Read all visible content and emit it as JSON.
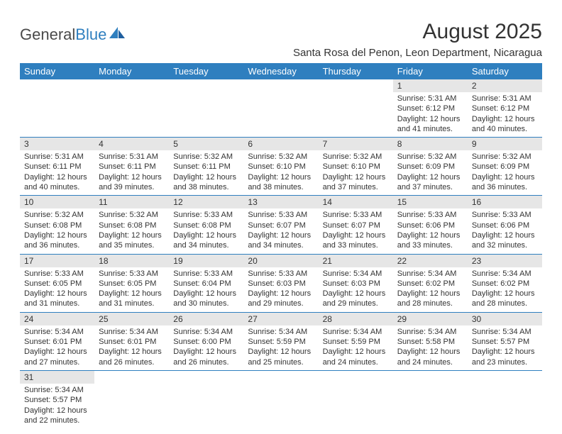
{
  "logo": {
    "part1": "General",
    "part2": "Blue"
  },
  "title": "August 2025",
  "location": "Santa Rosa del Penon, Leon Department, Nicaragua",
  "colors": {
    "header_bg": "#2f7fbf",
    "header_text": "#ffffff",
    "daynum_bg": "#e6e6e6",
    "border": "#2f7fbf",
    "text": "#333333",
    "logo_blue": "#2f7fbf"
  },
  "dayHeaders": [
    "Sunday",
    "Monday",
    "Tuesday",
    "Wednesday",
    "Thursday",
    "Friday",
    "Saturday"
  ],
  "weeks": [
    [
      null,
      null,
      null,
      null,
      null,
      {
        "n": "1",
        "sr": "Sunrise: 5:31 AM",
        "ss": "Sunset: 6:12 PM",
        "d1": "Daylight: 12 hours",
        "d2": "and 41 minutes."
      },
      {
        "n": "2",
        "sr": "Sunrise: 5:31 AM",
        "ss": "Sunset: 6:12 PM",
        "d1": "Daylight: 12 hours",
        "d2": "and 40 minutes."
      }
    ],
    [
      {
        "n": "3",
        "sr": "Sunrise: 5:31 AM",
        "ss": "Sunset: 6:11 PM",
        "d1": "Daylight: 12 hours",
        "d2": "and 40 minutes."
      },
      {
        "n": "4",
        "sr": "Sunrise: 5:31 AM",
        "ss": "Sunset: 6:11 PM",
        "d1": "Daylight: 12 hours",
        "d2": "and 39 minutes."
      },
      {
        "n": "5",
        "sr": "Sunrise: 5:32 AM",
        "ss": "Sunset: 6:11 PM",
        "d1": "Daylight: 12 hours",
        "d2": "and 38 minutes."
      },
      {
        "n": "6",
        "sr": "Sunrise: 5:32 AM",
        "ss": "Sunset: 6:10 PM",
        "d1": "Daylight: 12 hours",
        "d2": "and 38 minutes."
      },
      {
        "n": "7",
        "sr": "Sunrise: 5:32 AM",
        "ss": "Sunset: 6:10 PM",
        "d1": "Daylight: 12 hours",
        "d2": "and 37 minutes."
      },
      {
        "n": "8",
        "sr": "Sunrise: 5:32 AM",
        "ss": "Sunset: 6:09 PM",
        "d1": "Daylight: 12 hours",
        "d2": "and 37 minutes."
      },
      {
        "n": "9",
        "sr": "Sunrise: 5:32 AM",
        "ss": "Sunset: 6:09 PM",
        "d1": "Daylight: 12 hours",
        "d2": "and 36 minutes."
      }
    ],
    [
      {
        "n": "10",
        "sr": "Sunrise: 5:32 AM",
        "ss": "Sunset: 6:08 PM",
        "d1": "Daylight: 12 hours",
        "d2": "and 36 minutes."
      },
      {
        "n": "11",
        "sr": "Sunrise: 5:32 AM",
        "ss": "Sunset: 6:08 PM",
        "d1": "Daylight: 12 hours",
        "d2": "and 35 minutes."
      },
      {
        "n": "12",
        "sr": "Sunrise: 5:33 AM",
        "ss": "Sunset: 6:08 PM",
        "d1": "Daylight: 12 hours",
        "d2": "and 34 minutes."
      },
      {
        "n": "13",
        "sr": "Sunrise: 5:33 AM",
        "ss": "Sunset: 6:07 PM",
        "d1": "Daylight: 12 hours",
        "d2": "and 34 minutes."
      },
      {
        "n": "14",
        "sr": "Sunrise: 5:33 AM",
        "ss": "Sunset: 6:07 PM",
        "d1": "Daylight: 12 hours",
        "d2": "and 33 minutes."
      },
      {
        "n": "15",
        "sr": "Sunrise: 5:33 AM",
        "ss": "Sunset: 6:06 PM",
        "d1": "Daylight: 12 hours",
        "d2": "and 33 minutes."
      },
      {
        "n": "16",
        "sr": "Sunrise: 5:33 AM",
        "ss": "Sunset: 6:06 PM",
        "d1": "Daylight: 12 hours",
        "d2": "and 32 minutes."
      }
    ],
    [
      {
        "n": "17",
        "sr": "Sunrise: 5:33 AM",
        "ss": "Sunset: 6:05 PM",
        "d1": "Daylight: 12 hours",
        "d2": "and 31 minutes."
      },
      {
        "n": "18",
        "sr": "Sunrise: 5:33 AM",
        "ss": "Sunset: 6:05 PM",
        "d1": "Daylight: 12 hours",
        "d2": "and 31 minutes."
      },
      {
        "n": "19",
        "sr": "Sunrise: 5:33 AM",
        "ss": "Sunset: 6:04 PM",
        "d1": "Daylight: 12 hours",
        "d2": "and 30 minutes."
      },
      {
        "n": "20",
        "sr": "Sunrise: 5:33 AM",
        "ss": "Sunset: 6:03 PM",
        "d1": "Daylight: 12 hours",
        "d2": "and 29 minutes."
      },
      {
        "n": "21",
        "sr": "Sunrise: 5:34 AM",
        "ss": "Sunset: 6:03 PM",
        "d1": "Daylight: 12 hours",
        "d2": "and 29 minutes."
      },
      {
        "n": "22",
        "sr": "Sunrise: 5:34 AM",
        "ss": "Sunset: 6:02 PM",
        "d1": "Daylight: 12 hours",
        "d2": "and 28 minutes."
      },
      {
        "n": "23",
        "sr": "Sunrise: 5:34 AM",
        "ss": "Sunset: 6:02 PM",
        "d1": "Daylight: 12 hours",
        "d2": "and 28 minutes."
      }
    ],
    [
      {
        "n": "24",
        "sr": "Sunrise: 5:34 AM",
        "ss": "Sunset: 6:01 PM",
        "d1": "Daylight: 12 hours",
        "d2": "and 27 minutes."
      },
      {
        "n": "25",
        "sr": "Sunrise: 5:34 AM",
        "ss": "Sunset: 6:01 PM",
        "d1": "Daylight: 12 hours",
        "d2": "and 26 minutes."
      },
      {
        "n": "26",
        "sr": "Sunrise: 5:34 AM",
        "ss": "Sunset: 6:00 PM",
        "d1": "Daylight: 12 hours",
        "d2": "and 26 minutes."
      },
      {
        "n": "27",
        "sr": "Sunrise: 5:34 AM",
        "ss": "Sunset: 5:59 PM",
        "d1": "Daylight: 12 hours",
        "d2": "and 25 minutes."
      },
      {
        "n": "28",
        "sr": "Sunrise: 5:34 AM",
        "ss": "Sunset: 5:59 PM",
        "d1": "Daylight: 12 hours",
        "d2": "and 24 minutes."
      },
      {
        "n": "29",
        "sr": "Sunrise: 5:34 AM",
        "ss": "Sunset: 5:58 PM",
        "d1": "Daylight: 12 hours",
        "d2": "and 24 minutes."
      },
      {
        "n": "30",
        "sr": "Sunrise: 5:34 AM",
        "ss": "Sunset: 5:57 PM",
        "d1": "Daylight: 12 hours",
        "d2": "and 23 minutes."
      }
    ],
    [
      {
        "n": "31",
        "sr": "Sunrise: 5:34 AM",
        "ss": "Sunset: 5:57 PM",
        "d1": "Daylight: 12 hours",
        "d2": "and 22 minutes."
      },
      null,
      null,
      null,
      null,
      null,
      null
    ]
  ]
}
